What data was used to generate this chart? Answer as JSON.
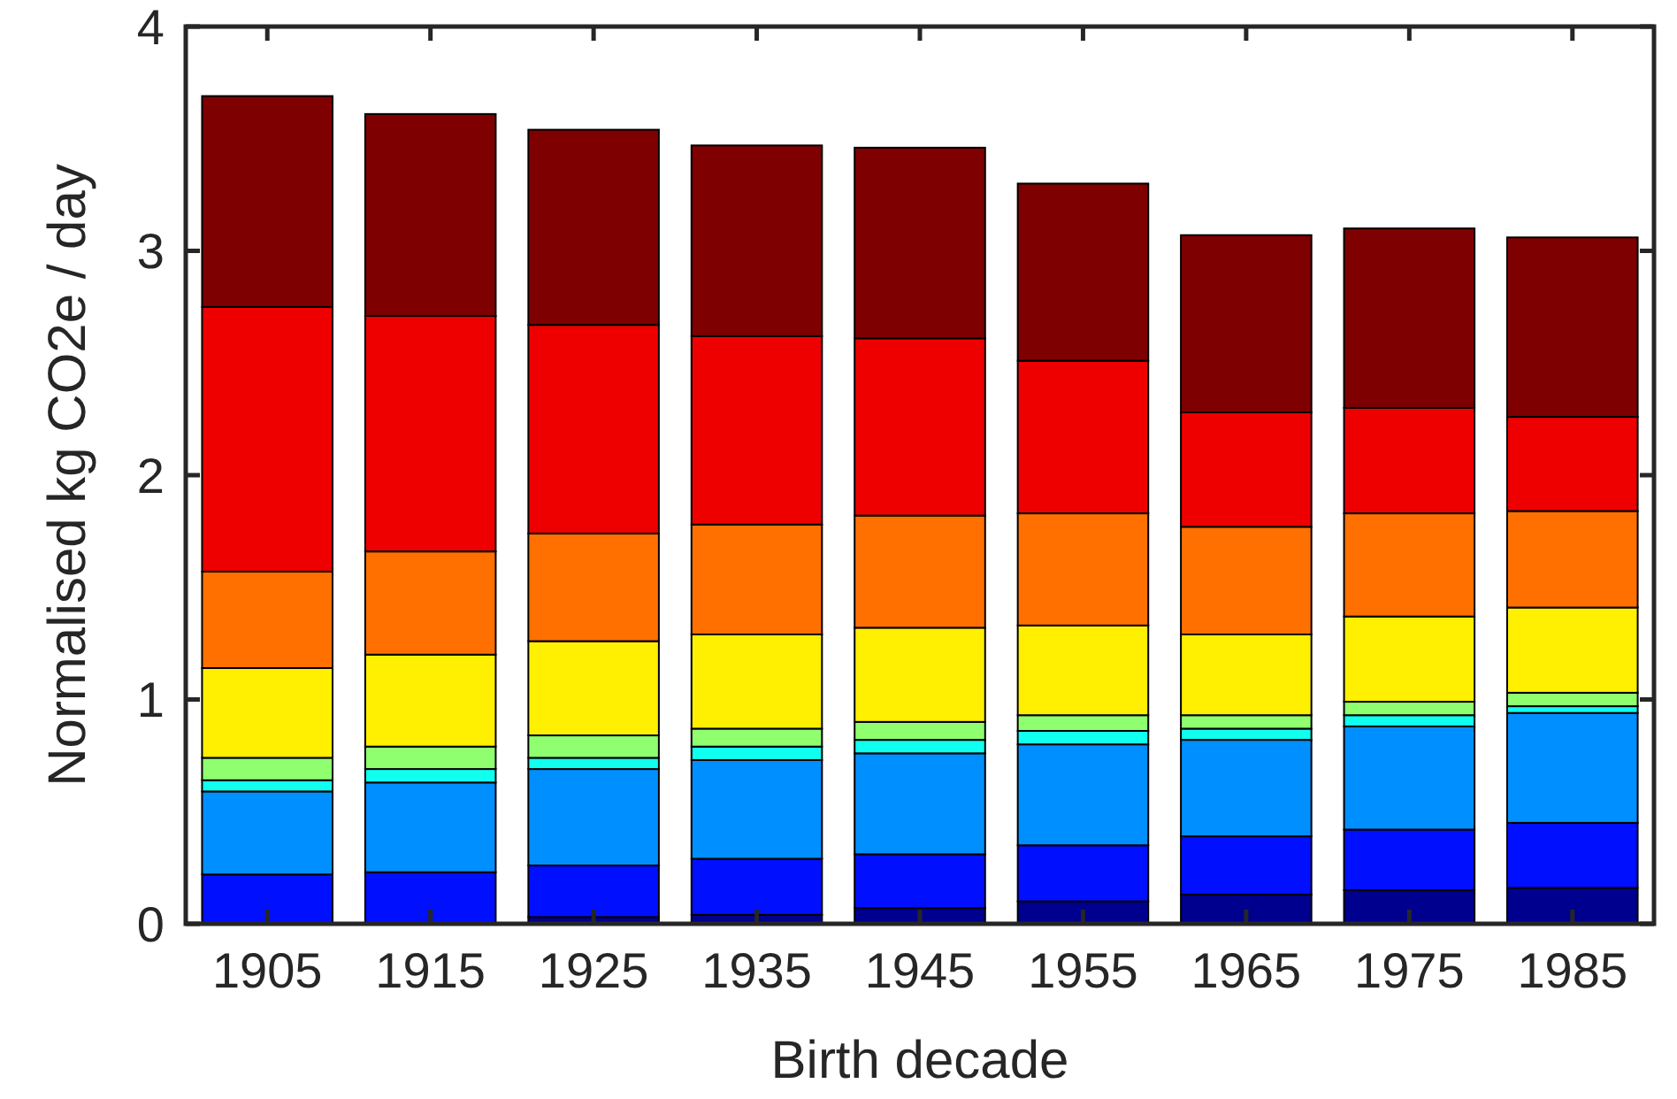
{
  "chart_data": {
    "type": "bar",
    "stacked": true,
    "xlabel": "Birth decade",
    "ylabel": "Normalised kg CO2e / day",
    "categories": [
      "1905",
      "1915",
      "1925",
      "1935",
      "1945",
      "1955",
      "1965",
      "1975",
      "1985"
    ],
    "ylim": [
      0,
      4
    ],
    "yticks": [
      0,
      1,
      2,
      3,
      4
    ],
    "grid": false,
    "series": [
      {
        "color": "#00008f",
        "values": [
          0,
          0,
          0.03,
          0.04,
          0.07,
          0.1,
          0.13,
          0.15,
          0.16
        ]
      },
      {
        "color": "#0010ff",
        "values": [
          0.22,
          0.23,
          0.23,
          0.25,
          0.24,
          0.25,
          0.26,
          0.27,
          0.29
        ]
      },
      {
        "color": "#008fff",
        "values": [
          0.37,
          0.4,
          0.43,
          0.44,
          0.45,
          0.45,
          0.43,
          0.46,
          0.49
        ]
      },
      {
        "color": "#10ffef",
        "values": [
          0.05,
          0.06,
          0.05,
          0.06,
          0.06,
          0.06,
          0.05,
          0.05,
          0.03
        ]
      },
      {
        "color": "#8fff70",
        "values": [
          0.1,
          0.1,
          0.1,
          0.08,
          0.08,
          0.07,
          0.06,
          0.06,
          0.06
        ]
      },
      {
        "color": "#ffef00",
        "values": [
          0.4,
          0.41,
          0.42,
          0.42,
          0.42,
          0.4,
          0.36,
          0.38,
          0.38
        ]
      },
      {
        "color": "#ff7000",
        "values": [
          0.43,
          0.46,
          0.48,
          0.49,
          0.5,
          0.5,
          0.48,
          0.46,
          0.43
        ]
      },
      {
        "color": "#ee0000",
        "values": [
          1.18,
          1.05,
          0.93,
          0.84,
          0.79,
          0.68,
          0.51,
          0.47,
          0.42
        ]
      },
      {
        "color": "#7f0000",
        "values": [
          0.94,
          0.9,
          0.87,
          0.85,
          0.85,
          0.79,
          0.79,
          0.8,
          0.8
        ]
      }
    ]
  }
}
